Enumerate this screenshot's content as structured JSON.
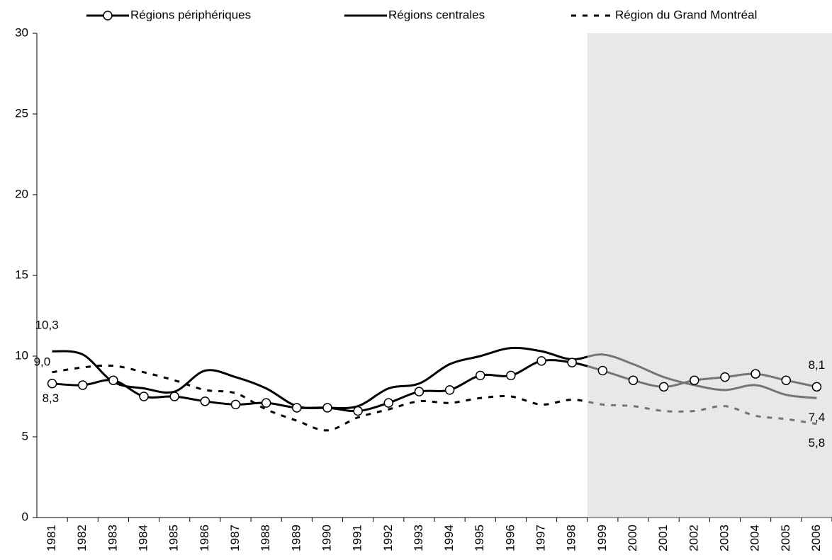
{
  "chart_data": {
    "type": "line",
    "categories": [
      "1981",
      "1982",
      "1983",
      "1984",
      "1985",
      "1986",
      "1987",
      "1988",
      "1989",
      "1990",
      "1991",
      "1992",
      "1993",
      "1994",
      "1995",
      "1996",
      "1997",
      "1998",
      "1999",
      "2000",
      "2001",
      "2002",
      "2003",
      "2004",
      "2005",
      "2006"
    ],
    "series": [
      {
        "name": "Régions périphériques",
        "color": "#000000",
        "marker": "circle",
        "dash": "solid",
        "values": [
          8.3,
          8.2,
          8.5,
          7.5,
          7.5,
          7.2,
          7.0,
          7.1,
          6.8,
          6.8,
          6.6,
          7.1,
          7.8,
          7.9,
          8.8,
          8.8,
          9.7,
          9.6,
          9.1,
          8.5,
          8.1,
          8.5,
          8.7,
          8.9,
          8.5,
          8.1
        ],
        "value_labels": [
          "8,3",
          null,
          null,
          null,
          null,
          null,
          null,
          null,
          null,
          null,
          null,
          null,
          null,
          null,
          null,
          null,
          null,
          null,
          null,
          null,
          null,
          null,
          null,
          null,
          null,
          "8,1"
        ]
      },
      {
        "name": "Régions centrales",
        "color": "#000000",
        "marker": "none",
        "dash": "solid",
        "values": [
          10.3,
          10.1,
          8.4,
          8.0,
          7.8,
          9.1,
          8.7,
          8.0,
          6.9,
          6.8,
          6.9,
          8.0,
          8.3,
          9.5,
          10.0,
          10.5,
          10.3,
          9.8,
          10.1,
          9.5,
          8.7,
          8.2,
          7.9,
          8.2,
          7.6,
          7.4
        ],
        "value_labels": [
          "10,3",
          null,
          null,
          null,
          null,
          null,
          null,
          null,
          null,
          null,
          null,
          null,
          null,
          null,
          null,
          null,
          null,
          null,
          null,
          null,
          null,
          null,
          null,
          null,
          null,
          "7,4"
        ]
      },
      {
        "name": "Région du Grand Montréal",
        "color": "#000000",
        "marker": "none",
        "dash": "dashed",
        "values": [
          9.0,
          9.3,
          9.4,
          9.0,
          8.5,
          7.9,
          7.7,
          6.7,
          6.0,
          5.4,
          6.2,
          6.7,
          7.2,
          7.1,
          7.4,
          7.5,
          7.0,
          7.3,
          7.0,
          6.9,
          6.6,
          6.6,
          6.9,
          6.3,
          6.1,
          5.8
        ],
        "value_labels": [
          "9,0",
          null,
          null,
          null,
          null,
          null,
          null,
          null,
          null,
          null,
          null,
          null,
          null,
          null,
          null,
          null,
          null,
          null,
          null,
          null,
          null,
          null,
          null,
          null,
          null,
          "5,8"
        ]
      }
    ],
    "ylim": [
      0,
      30
    ],
    "yticks": [
      0,
      5,
      10,
      15,
      20,
      25,
      30
    ],
    "grid": false,
    "legend": "top",
    "shaded_from": "1999"
  }
}
